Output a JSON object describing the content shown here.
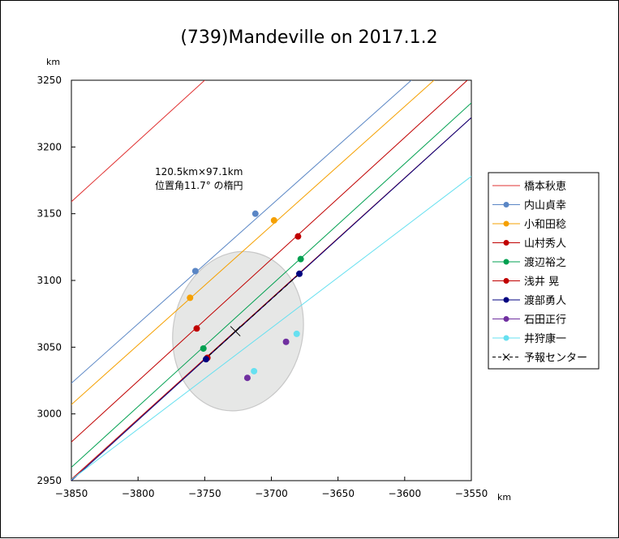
{
  "chart_data": {
    "type": "scatter",
    "title": "(739)Mandeville on 2017.1.2",
    "x_unit": "km",
    "y_unit": "km",
    "xlim": [
      -3850,
      -3550
    ],
    "ylim": [
      2950,
      3250
    ],
    "x_ticks": [
      -3850,
      -3800,
      -3750,
      -3700,
      -3650,
      -3600,
      -3550
    ],
    "y_ticks": [
      2950,
      3000,
      3050,
      3100,
      3150,
      3200,
      3250
    ],
    "grid": false,
    "legend_position": "right",
    "annotation": [
      "120.5km×97.1km",
      "位置角11.7° の楕円"
    ],
    "ellipse": {
      "cx": -3725,
      "cy": 3062,
      "major_km": 120.5,
      "minor_km": 97.1,
      "position_angle_deg": 11.7,
      "fill": "#e6e7e6",
      "stroke": "#c8c8c8"
    },
    "chord_slope": 1.13,
    "series": [
      {
        "name": "橋本秋恵",
        "color": "#e03030",
        "marker": false,
        "line": [
          [
            -3850,
            3159
          ],
          [
            -3750,
            3250
          ]
        ],
        "points": []
      },
      {
        "name": "内山貞幸",
        "color": "#5a86c5",
        "marker": true,
        "line": [
          [
            -3850,
            3023
          ],
          [
            -3595,
            3250
          ]
        ],
        "points": [
          [
            -3757,
            3107
          ],
          [
            -3712,
            3150
          ]
        ]
      },
      {
        "name": "小和田稔",
        "color": "#f5a000",
        "marker": true,
        "line": [
          [
            -3850,
            3007
          ],
          [
            -3578,
            3250
          ]
        ],
        "points": [
          [
            -3761,
            3087
          ],
          [
            -3698,
            3145
          ]
        ]
      },
      {
        "name": "山村秀人",
        "color": "#c00000",
        "marker": true,
        "line": [
          [
            -3850,
            2979
          ],
          [
            -3553,
            3250
          ]
        ],
        "points": [
          [
            -3756,
            3064
          ],
          [
            -3680,
            3133
          ]
        ]
      },
      {
        "name": "渡辺裕之",
        "color": "#00a050",
        "marker": true,
        "line": [
          [
            -3850,
            2960
          ],
          [
            -3550,
            3233
          ]
        ],
        "points": [
          [
            -3751,
            3049
          ],
          [
            -3678,
            3116
          ]
        ]
      },
      {
        "name": "浅井 晃",
        "color": "#c00000",
        "marker": true,
        "line": [
          [
            -3850,
            2951
          ],
          [
            -3550,
            3222
          ]
        ],
        "points": [
          [
            -3748,
            3042
          ]
        ]
      },
      {
        "name": "渡部勇人",
        "color": "#000080",
        "marker": true,
        "line": [
          [
            -3850,
            2950
          ],
          [
            -3550,
            3222
          ]
        ],
        "points": [
          [
            -3749,
            3041
          ],
          [
            -3679,
            3105
          ]
        ]
      },
      {
        "name": "石田正行",
        "color": "#7030a0",
        "marker": true,
        "line": [],
        "points": [
          [
            -3718,
            3027
          ],
          [
            -3689,
            3054
          ]
        ]
      },
      {
        "name": "井狩康一",
        "color": "#66e0f0",
        "marker": true,
        "line": [
          [
            -3851,
            2950
          ],
          [
            -3550,
            3178
          ]
        ],
        "points": [
          [
            -3713,
            3032
          ],
          [
            -3681,
            3060
          ]
        ]
      },
      {
        "name": "予報センター",
        "color": "#000000",
        "marker": "x",
        "dashed": true,
        "line": [
          [
            -3751,
            3040
          ],
          [
            -3680,
            3104
          ]
        ],
        "points": [
          [
            -3727,
            3062
          ]
        ]
      }
    ]
  }
}
